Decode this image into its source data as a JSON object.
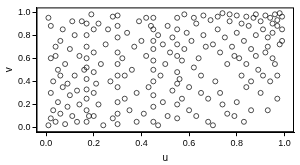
{
  "chart_data": {
    "type": "scatter",
    "xlabel": "u",
    "ylabel": "v",
    "x": [
      0.01,
      0.02,
      0.03,
      0.04,
      0.05,
      0.02,
      0.06,
      0.08,
      0.03,
      0.07,
      0.01,
      0.02,
      0.04,
      0.05,
      0.06,
      0.09,
      0.1,
      0.11,
      0.12,
      0.13,
      0.17,
      0.17,
      0.17,
      0.17,
      0.17,
      0.17,
      0.17,
      0.17,
      0.17,
      0.17,
      0.2,
      0.2,
      0.2,
      0.2,
      0.2,
      0.21,
      0.22,
      0.23,
      0.24,
      0.25,
      0.3,
      0.3,
      0.3,
      0.3,
      0.3,
      0.3,
      0.3,
      0.3,
      0.3,
      0.3,
      0.27,
      0.28,
      0.32,
      0.33,
      0.34,
      0.35,
      0.36,
      0.37,
      0.38,
      0.39,
      0.45,
      0.45,
      0.45,
      0.45,
      0.45,
      0.45,
      0.45,
      0.45,
      0.45,
      0.45,
      0.41,
      0.42,
      0.43,
      0.47,
      0.48,
      0.49,
      0.5,
      0.51,
      0.52,
      0.53,
      0.55,
      0.55,
      0.55,
      0.55,
      0.55,
      0.55,
      0.55,
      0.55,
      0.56,
      0.57,
      0.58,
      0.6,
      0.61,
      0.62,
      0.63,
      0.64,
      0.65,
      0.66,
      0.67,
      0.68,
      0.7,
      0.71,
      0.72,
      0.73,
      0.74,
      0.75,
      0.76,
      0.77,
      0.78,
      0.79,
      0.8,
      0.81,
      0.82,
      0.83,
      0.84,
      0.85,
      0.86,
      0.87,
      0.88,
      0.89,
      0.9,
      0.91,
      0.92,
      0.93,
      0.94,
      0.95,
      0.96,
      0.97,
      0.98,
      0.99,
      0.92,
      0.94,
      0.95,
      0.96,
      0.97,
      0.98,
      0.99,
      0.97,
      0.93,
      0.91,
      0.58,
      0.62,
      0.66,
      0.69,
      0.72,
      0.74,
      0.77,
      0.8,
      0.84,
      0.88,
      0.08,
      0.1,
      0.12,
      0.14,
      0.15,
      0.19,
      0.22,
      0.26,
      0.28,
      0.33,
      0.6,
      0.63,
      0.65,
      0.68,
      0.7,
      0.73,
      0.76,
      0.8,
      0.83,
      0.86,
      0.38,
      0.4,
      0.42,
      0.44,
      0.47,
      0.49,
      0.51,
      0.53,
      0.57,
      0.59,
      0.02,
      0.04,
      0.06,
      0.07,
      0.09,
      0.11,
      0.13,
      0.14,
      0.16,
      0.18,
      0.88,
      0.9,
      0.93,
      0.95,
      0.97,
      0.99,
      0.86,
      0.84,
      0.82,
      0.79
    ],
    "values": [
      0.02,
      0.08,
      0.15,
      0.05,
      0.22,
      0.3,
      0.12,
      0.03,
      0.4,
      0.35,
      0.95,
      0.88,
      0.62,
      0.5,
      0.75,
      0.18,
      0.28,
      0.1,
      0.45,
      0.05,
      0.05,
      0.15,
      0.25,
      0.33,
      0.42,
      0.52,
      0.6,
      0.7,
      0.8,
      0.9,
      0.1,
      0.3,
      0.48,
      0.65,
      0.85,
      0.38,
      0.2,
      0.55,
      0.02,
      0.72,
      0.03,
      0.12,
      0.22,
      0.35,
      0.45,
      0.55,
      0.65,
      0.78,
      0.88,
      0.97,
      0.4,
      0.08,
      0.6,
      0.25,
      0.82,
      0.15,
      0.5,
      0.7,
      0.3,
      0.92,
      0.05,
      0.18,
      0.28,
      0.4,
      0.5,
      0.58,
      0.68,
      0.75,
      0.85,
      0.95,
      0.12,
      0.62,
      0.35,
      0.8,
      0.45,
      0.22,
      0.55,
      0.88,
      0.65,
      0.32,
      0.08,
      0.2,
      0.38,
      0.48,
      0.62,
      0.72,
      0.85,
      0.95,
      0.42,
      0.58,
      0.68,
      0.15,
      0.75,
      0.52,
      0.9,
      0.6,
      0.3,
      0.8,
      0.7,
      0.05,
      0.72,
      0.4,
      0.85,
      0.65,
      0.2,
      0.78,
      0.55,
      0.92,
      0.7,
      0.1,
      0.82,
      0.6,
      0.9,
      0.75,
      0.35,
      0.88,
      0.68,
      0.95,
      0.8,
      0.5,
      0.92,
      0.85,
      0.97,
      0.78,
      0.95,
      0.9,
      0.98,
      0.93,
      0.99,
      0.96,
      0.65,
      0.4,
      0.82,
      0.55,
      0.88,
      0.72,
      0.85,
      0.25,
      0.15,
      0.45,
      0.98,
      0.95,
      0.97,
      0.93,
      0.96,
      0.99,
      0.98,
      0.97,
      0.96,
      0.98,
      0.55,
      0.68,
      0.8,
      0.62,
      0.92,
      0.98,
      0.9,
      0.85,
      0.96,
      0.45,
      0.35,
      0.1,
      0.45,
      0.25,
      0.02,
      0.3,
      0.12,
      0.22,
      0.05,
      0.15,
      0.05,
      0.75,
      0.95,
      0.88,
      0.02,
      0.72,
      0.1,
      0.78,
      0.25,
      0.82,
      0.6,
      0.7,
      0.45,
      0.85,
      0.38,
      0.92,
      0.32,
      0.2,
      0.5,
      0.1,
      0.62,
      0.3,
      0.7,
      0.6,
      0.45,
      0.75,
      0.4,
      0.55,
      0.45,
      0.62
    ],
    "xlim": [
      -0.04,
      1.04
    ],
    "ylim": [
      -0.04,
      1.04
    ],
    "xticks": [
      {
        "value": 0,
        "label": "0.0"
      },
      0.2,
      0.4,
      0.6,
      0.8,
      {
        "value": 1,
        "label": "1.0"
      }
    ],
    "yticks": [
      {
        "value": 0,
        "label": "0.0"
      },
      0.2,
      0.4,
      0.6,
      0.8,
      {
        "value": 1,
        "label": "1.0"
      }
    ],
    "color": "#000000",
    "marker": "circle",
    "grid": false
  }
}
